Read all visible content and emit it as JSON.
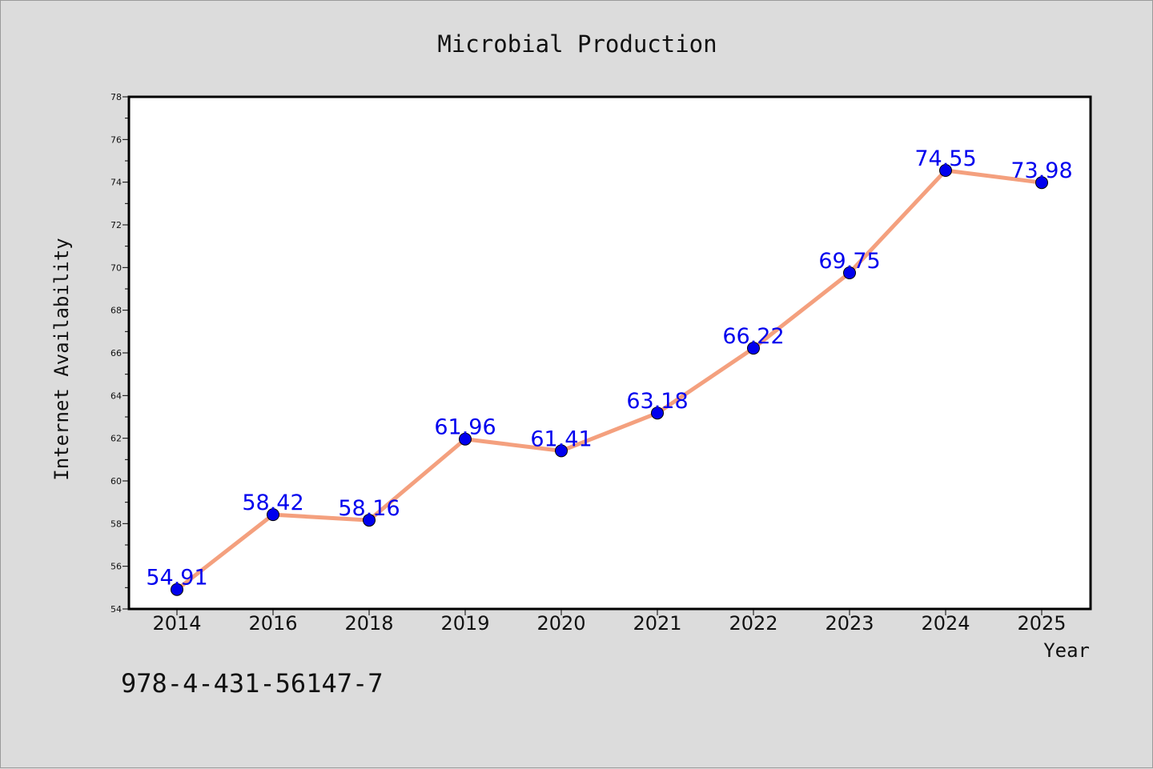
{
  "chart_data": {
    "type": "line",
    "title": "Microbial Production",
    "xlabel": "Year",
    "ylabel": "Internet Availability",
    "categories": [
      "2014",
      "2016",
      "2018",
      "2019",
      "2020",
      "2021",
      "2022",
      "2023",
      "2024",
      "2025"
    ],
    "values": [
      54.91,
      58.42,
      58.16,
      61.96,
      61.41,
      63.18,
      66.22,
      69.75,
      74.55,
      73.98
    ],
    "data_labels": [
      "54.91",
      "58.42",
      "58.16",
      "61.96",
      "61.41",
      "63.18",
      "66.22",
      "69.75",
      "74.55",
      "73.98"
    ],
    "ylim": [
      54,
      78
    ],
    "yticks": [
      54,
      56,
      58,
      60,
      62,
      64,
      66,
      68,
      70,
      72,
      74,
      76,
      78
    ],
    "grid": false,
    "line_color": "#f4a07e",
    "marker_color": "#0000ee",
    "label_color": "#0000ee"
  },
  "footer_text": "978-4-431-56147-7"
}
